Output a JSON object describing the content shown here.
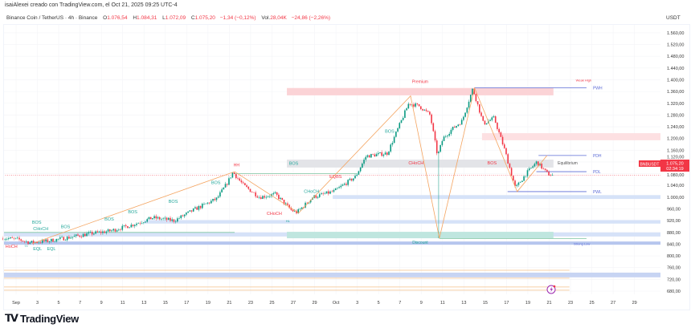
{
  "header": {
    "creator_line": "isaiAlexei creado con TradingView.com, el Oct 21, 2025 09:25 UTC-4",
    "symbol": "Binance Coin / TetherUS · 4h · Binance",
    "open_label": "O",
    "open": "1.076,54",
    "high_label": "H",
    "high": "1.084,31",
    "low_label": "L",
    "low": "1.072,09",
    "close_label": "C",
    "close": "1.075,20",
    "change": "−1,34 (−0,12%)",
    "vol_label": "Vol.",
    "vol": "28,04K",
    "vol_change": "−24,86 (−2,26%)"
  },
  "price_axis": {
    "currency": "USDT",
    "ticks": [
      "1.560,00",
      "1.520,00",
      "1.480,00",
      "1.440,00",
      "1.400,00",
      "1.360,00",
      "1.320,00",
      "1.280,00",
      "1.240,00",
      "1.200,00",
      "1.160,00",
      "1.120,00",
      "1.080,00",
      "1.040,00",
      "1.000,00",
      "960,00",
      "920,00",
      "880,00",
      "840,00",
      "800,00",
      "760,00",
      "720,00",
      "680,00"
    ],
    "tick_values": [
      1560,
      1520,
      1480,
      1440,
      1400,
      1360,
      1320,
      1280,
      1240,
      1200,
      1160,
      1120,
      1080,
      1040,
      1000,
      960,
      920,
      880,
      840,
      800,
      760,
      720,
      680
    ],
    "symbol_badge": "BNBUSDT",
    "last_price": "1.075,20",
    "countdown": "02:34:19",
    "last_price_value": 1075.2
  },
  "time_axis": {
    "ticks": [
      "Sep",
      "3",
      "5",
      "7",
      "9",
      "11",
      "13",
      "15",
      "17",
      "19",
      "21",
      "23",
      "25",
      "27",
      "29",
      "Oct",
      "3",
      "5",
      "7",
      "9",
      "11",
      "13",
      "15",
      "17",
      "19",
      "21",
      "23",
      "25",
      "27",
      "29"
    ],
    "tick_days": [
      0,
      2,
      4,
      6,
      8,
      10,
      12,
      14,
      16,
      18,
      20,
      22,
      24,
      26,
      28,
      30,
      32,
      34,
      36,
      38,
      40,
      42,
      44,
      46,
      48,
      50,
      52,
      54,
      56,
      58
    ]
  },
  "footer": {
    "brand": "TradingView"
  },
  "colors": {
    "up": "#089981",
    "down": "#f23645",
    "teal": "#22a69a",
    "red": "#f23645",
    "orange": "#f4a460",
    "blue_zone": "#c7d6f5",
    "pink_zone": "#fbd3d6",
    "gray_zone": "#e3e4e8",
    "line_blue": "#5b6bd6"
  },
  "chart_data": {
    "type": "candlestick",
    "symbol": "BNBUSDT",
    "timeframe": "4h",
    "day_origin": "Sep 1, 2025",
    "price_path": [
      [
        -1.2,
        862
      ],
      [
        0.5,
        855
      ],
      [
        1.5,
        845
      ],
      [
        3,
        850
      ],
      [
        5,
        862
      ],
      [
        7,
        875
      ],
      [
        9,
        885
      ],
      [
        11,
        905
      ],
      [
        13,
        930
      ],
      [
        15,
        920
      ],
      [
        17,
        960
      ],
      [
        19,
        995
      ],
      [
        20,
        1050
      ],
      [
        20.5,
        1085
      ],
      [
        21.5,
        1040
      ],
      [
        23,
        1000
      ],
      [
        24.5,
        1010
      ],
      [
        26,
        955
      ],
      [
        26.5,
        948
      ],
      [
        28,
        1000
      ],
      [
        30,
        1020
      ],
      [
        32,
        1070
      ],
      [
        33,
        1140
      ],
      [
        35,
        1150
      ],
      [
        37,
        1320
      ],
      [
        38,
        1310
      ],
      [
        39,
        1280
      ],
      [
        39.7,
        1140
      ],
      [
        40.2,
        1200
      ],
      [
        41,
        1230
      ],
      [
        42,
        1260
      ],
      [
        43,
        1370
      ],
      [
        44,
        1250
      ],
      [
        45,
        1270
      ],
      [
        46,
        1160
      ],
      [
        47,
        1030
      ],
      [
        48,
        1080
      ],
      [
        49,
        1120
      ],
      [
        50,
        1080
      ],
      [
        50.4,
        1075
      ]
    ],
    "crash_wick": {
      "day": 39.7,
      "low": 860
    },
    "zones": [
      {
        "name": "premium-zone",
        "d0": 25.4,
        "d1": 50.4,
        "p0": 1347,
        "p1": 1372,
        "color": "#fbd3d6",
        "label": "Premium",
        "label_pos": "top",
        "label_color": "#f23645"
      },
      {
        "name": "supply-zone",
        "d0": 43.7,
        "d1": 60.5,
        "p0": 1194,
        "p1": 1218,
        "color": "#fde0e2"
      },
      {
        "name": "equilibrium-zone",
        "d0": 25.4,
        "d1": 50.4,
        "p0": 1101,
        "p1": 1128,
        "color": "#e3e4e8"
      },
      {
        "name": "demand-zone-1",
        "d0": 29.7,
        "d1": 60.5,
        "p0": 994,
        "p1": 1007,
        "color": "#d6e2f8"
      },
      {
        "name": "demand-zone-2",
        "d0": 12,
        "d1": 60.5,
        "p0": 910,
        "p1": 922,
        "color": "#d6e2f8"
      },
      {
        "name": "demand-zone-3",
        "d0": -1.2,
        "d1": 60.5,
        "p0": 866,
        "p1": 880,
        "color": "#d6e2f8"
      },
      {
        "name": "discount-zone",
        "d0": 25.4,
        "d1": 50.4,
        "p0": 860,
        "p1": 882,
        "color": "#bfe6df",
        "label": "Discount",
        "label_pos": "bottom",
        "label_color": "#22a69a"
      },
      {
        "name": "strong-low-zone",
        "d0": -1.2,
        "d1": 60.5,
        "p0": 838,
        "p1": 849,
        "color": "#b6c6ee"
      },
      {
        "name": "demand-zone-4",
        "d0": -1.2,
        "d1": 60.5,
        "p0": 727,
        "p1": 743,
        "color": "#c7d4f3"
      }
    ],
    "levels": [
      {
        "name": "pwh-line",
        "d0": 43,
        "d1": 53.5,
        "p": 1373,
        "color": "#5b6bd6",
        "label": "PWH"
      },
      {
        "name": "pdh-line",
        "d0": 49,
        "d1": 53.5,
        "p": 1142,
        "color": "#5b6bd6",
        "label": "PDH"
      },
      {
        "name": "pdl-line",
        "d0": 48.8,
        "d1": 53.5,
        "p": 1087,
        "color": "#5b6bd6",
        "label": "PDL"
      },
      {
        "name": "pwl-line",
        "d0": 46.1,
        "d1": 53.5,
        "p": 1019,
        "color": "#5b6bd6",
        "label": "PWL"
      },
      {
        "name": "hh-level-line",
        "d0": 20.5,
        "d1": 32,
        "p": 1080,
        "color": "#7cc4a0"
      },
      {
        "name": "early-choch-line",
        "d0": -1.2,
        "d1": 20.5,
        "p": 880,
        "color": "#7cc4a0"
      },
      {
        "name": "discount-low-line",
        "d0": 39.7,
        "d1": 53.5,
        "p": 859,
        "color": "#7cc4a0"
      },
      {
        "name": "orange-level-1",
        "d0": -1.2,
        "d1": 51.9,
        "p": 751,
        "color": "#f4c08a"
      },
      {
        "name": "orange-level-2",
        "d0": -1.2,
        "d1": 51.9,
        "p": 724,
        "color": "#f4c08a"
      },
      {
        "name": "orange-level-3",
        "d0": -1.2,
        "d1": 51.9,
        "p": 694,
        "color": "#f4c08a"
      },
      {
        "name": "orange-level-4",
        "d0": -1.2,
        "d1": 51.9,
        "p": 683,
        "color": "#f4c08a"
      }
    ],
    "zigzag": [
      [
        1.5,
        842
      ],
      [
        20.5,
        1087
      ],
      [
        26.5,
        946
      ],
      [
        37,
        1345
      ],
      [
        39.7,
        860
      ],
      [
        43,
        1372
      ],
      [
        47,
        1019
      ],
      [
        49.8,
        1142
      ]
    ],
    "labels": [
      {
        "text": "Weak High",
        "d": 52.5,
        "p": 1395,
        "color": "#f23645",
        "size": 4
      },
      {
        "text": "Equilibrium",
        "d": 50.8,
        "p": 1112,
        "color": "#555",
        "size": 5
      },
      {
        "text": "Strong Low",
        "d": 52.3,
        "p": 837,
        "color": "#5b6bd6",
        "size": 4
      },
      {
        "text": "HH",
        "d": 20.4,
        "p": 1105,
        "color": "#f23645",
        "size": 5
      },
      {
        "text": "BOS",
        "d": 18.3,
        "p": 1045,
        "color": "#22a69a",
        "size": 5.5
      },
      {
        "text": "BOS",
        "d": 14.3,
        "p": 980,
        "color": "#22a69a",
        "size": 5.5
      },
      {
        "text": "BOS",
        "d": 10.5,
        "p": 945,
        "color": "#22a69a",
        "size": 5.5
      },
      {
        "text": "BOS",
        "d": 8.3,
        "p": 920,
        "color": "#22a69a",
        "size": 5.5
      },
      {
        "text": "BOS",
        "d": 4.2,
        "p": 895,
        "color": "#22a69a",
        "size": 5.5
      },
      {
        "text": "BOS",
        "d": 1.5,
        "p": 910,
        "color": "#22a69a",
        "size": 5.5
      },
      {
        "text": "CHoCH",
        "d": 1.6,
        "p": 887,
        "color": "#22a69a",
        "size": 5.5
      },
      {
        "text": "HoCH",
        "d": -1.0,
        "p": 827,
        "color": "#f23645",
        "size": 5.5
      },
      {
        "text": "LL",
        "d": 0.8,
        "p": 832,
        "color": "#22a69a",
        "size": 4
      },
      {
        "text": "EQL",
        "d": 1.6,
        "p": 820,
        "color": "#22a69a",
        "size": 5.5
      },
      {
        "text": "EQL",
        "d": 2.9,
        "p": 820,
        "color": "#22a69a",
        "size": 5.5
      },
      {
        "text": "CHoCH",
        "d": 23.5,
        "p": 940,
        "color": "#f23645",
        "size": 5.5
      },
      {
        "text": "HL",
        "d": 25.3,
        "p": 915,
        "color": "#22a69a",
        "size": 4
      },
      {
        "text": "CHoCH",
        "d": 27.0,
        "p": 1015,
        "color": "#22a69a",
        "size": 5.5
      },
      {
        "text": "EQBS",
        "d": 29.4,
        "p": 1065,
        "color": "#f23645",
        "size": 5.5
      },
      {
        "text": "BOS",
        "d": 25.6,
        "p": 1110,
        "color": "#22a69a",
        "size": 5.5
      },
      {
        "text": "BOS",
        "d": 34.6,
        "p": 1220,
        "color": "#22a69a",
        "size": 5.5
      },
      {
        "text": "CHoCH",
        "d": 36.8,
        "p": 1112,
        "color": "#f23645",
        "size": 5.5
      },
      {
        "text": "BOS",
        "d": 44.2,
        "p": 1112,
        "color": "#f23645",
        "size": 5.5
      }
    ]
  }
}
